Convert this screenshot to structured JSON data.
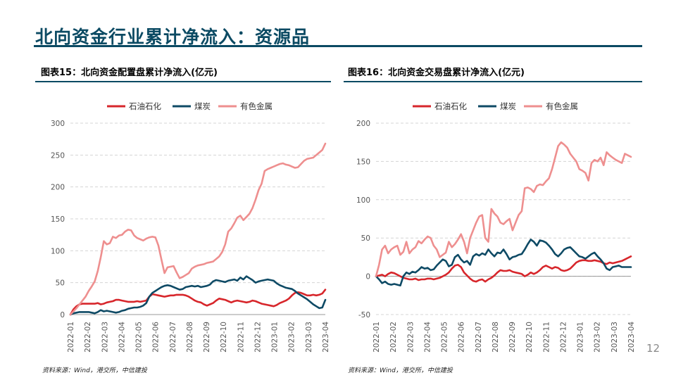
{
  "slide": {
    "title": "北向资金行业累计净流入：资源品",
    "page_number": "12",
    "accent_color": "#0b4a63"
  },
  "chart_data": [
    {
      "type": "line",
      "title": "图表15：北向资金配置盘累计净流入(亿元)",
      "source": "资料来源：Wind，港交所，中信建投",
      "xlabel": "",
      "ylabel": "",
      "ylim": [
        0,
        300
      ],
      "yticks": [
        "0",
        "50",
        "100",
        "150",
        "200",
        "250",
        "300"
      ],
      "xticks": [
        "2022-01",
        "2022-02",
        "2022-03",
        "2022-04",
        "2022-05",
        "2022-06",
        "2022-07",
        "2022-08",
        "2022-09",
        "2022-10",
        "2022-11",
        "2022-12",
        "2023-01",
        "2023-02",
        "2023-03",
        "2023-04"
      ],
      "grid": "horizontal",
      "legend_position": "top",
      "series": [
        {
          "name": "石油石化",
          "color": "#d7262b",
          "values": [
            0,
            8,
            13,
            16,
            17,
            17,
            17,
            17,
            17,
            18,
            16,
            17,
            19,
            20,
            21,
            23,
            23,
            22,
            21,
            20,
            20,
            20,
            21,
            20,
            21,
            22,
            28,
            32,
            31,
            30,
            29,
            28,
            29,
            30,
            30,
            31,
            31,
            31,
            30,
            28,
            25,
            22,
            20,
            19,
            16,
            14,
            16,
            18,
            22,
            25,
            24,
            23,
            21,
            19,
            21,
            22,
            21,
            20,
            19,
            20,
            22,
            21,
            19,
            17,
            16,
            15,
            14,
            13,
            15,
            18,
            20,
            22,
            25,
            30,
            34,
            35,
            34,
            32,
            30,
            30,
            31,
            30,
            31,
            33,
            39
          ]
        },
        {
          "name": "煤炭",
          "color": "#0e4a65",
          "values": [
            0,
            2,
            3,
            4,
            4,
            4,
            4,
            3,
            2,
            4,
            7,
            5,
            6,
            5,
            4,
            3,
            4,
            6,
            7,
            9,
            10,
            11,
            11,
            12,
            14,
            18,
            28,
            34,
            37,
            40,
            43,
            45,
            46,
            45,
            43,
            41,
            39,
            40,
            43,
            44,
            45,
            44,
            45,
            43,
            44,
            45,
            47,
            52,
            54,
            53,
            52,
            51,
            53,
            54,
            55,
            53,
            58,
            55,
            60,
            57,
            54,
            50,
            52,
            53,
            54,
            55,
            54,
            53,
            49,
            46,
            44,
            42,
            41,
            40,
            37,
            33,
            30,
            27,
            24,
            20,
            16,
            13,
            10,
            11,
            23
          ]
        },
        {
          "name": "有色金属",
          "color": "#ee8f8f",
          "values": [
            0,
            5,
            10,
            16,
            22,
            28,
            37,
            44,
            52,
            68,
            90,
            115,
            110,
            112,
            122,
            120,
            124,
            125,
            130,
            133,
            132,
            124,
            120,
            118,
            116,
            119,
            121,
            122,
            121,
            108,
            86,
            65,
            74,
            75,
            76,
            66,
            57,
            59,
            62,
            65,
            72,
            75,
            77,
            78,
            79,
            81,
            82,
            83,
            87,
            91,
            98,
            110,
            130,
            135,
            143,
            152,
            155,
            148,
            153,
            158,
            167,
            180,
            195,
            205,
            225,
            228,
            230,
            232,
            234,
            236,
            237,
            235,
            234,
            232,
            230,
            231,
            236,
            241,
            244,
            245,
            246,
            250,
            254,
            258,
            268
          ]
        }
      ]
    },
    {
      "type": "line",
      "title": "图表16：北向资金交易盘累计净流入(亿元)",
      "source": "资料来源：Wind，港交所，中信建投",
      "xlabel": "",
      "ylabel": "",
      "ylim": [
        -50,
        200
      ],
      "yticks": [
        "-50",
        "0",
        "50",
        "100",
        "150",
        "200"
      ],
      "xticks": [
        "2022-01",
        "2022-02",
        "2022-03",
        "2022-04",
        "2022-05",
        "2022-06",
        "2022-07",
        "2022-08",
        "2022-09",
        "2022-10",
        "2022-11",
        "2022-12",
        "2023-01",
        "2023-02",
        "2023-03",
        "2023-04"
      ],
      "grid": "horizontal",
      "legend_position": "top",
      "series": [
        {
          "name": "石油石化",
          "color": "#d7262b",
          "values": [
            0,
            1,
            2,
            0,
            3,
            5,
            4,
            2,
            0,
            -2,
            -3,
            -4,
            -4,
            -3,
            -5,
            -4,
            -4,
            -3,
            -3,
            -4,
            -3,
            -2,
            0,
            2,
            5,
            10,
            14,
            15,
            12,
            5,
            1,
            -3,
            -6,
            -7,
            -5,
            -4,
            -7,
            -4,
            -2,
            1,
            5,
            8,
            7,
            7,
            8,
            6,
            5,
            4,
            3,
            0,
            2,
            5,
            3,
            5,
            8,
            12,
            14,
            12,
            10,
            12,
            11,
            8,
            7,
            8,
            10,
            14,
            18,
            20,
            21,
            21,
            20,
            20,
            21,
            20,
            19,
            17,
            16,
            18,
            17,
            18,
            19,
            20,
            22,
            24,
            26
          ]
        },
        {
          "name": "煤炭",
          "color": "#0e4a65",
          "values": [
            0,
            -4,
            -9,
            -7,
            -10,
            -11,
            -10,
            -11,
            -12,
            0,
            5,
            3,
            6,
            5,
            8,
            12,
            10,
            11,
            8,
            9,
            14,
            18,
            22,
            20,
            13,
            15,
            25,
            28,
            22,
            18,
            20,
            15,
            26,
            29,
            27,
            30,
            28,
            35,
            30,
            26,
            31,
            30,
            35,
            29,
            22,
            25,
            26,
            28,
            29,
            35,
            42,
            48,
            45,
            40,
            47,
            46,
            44,
            40,
            35,
            29,
            26,
            30,
            35,
            37,
            38,
            34,
            30,
            26,
            25,
            23,
            26,
            29,
            31,
            26,
            22,
            17,
            10,
            8,
            12,
            13,
            14,
            12,
            12,
            12,
            12
          ]
        },
        {
          "name": "有色金属",
          "color": "#ee8f8f",
          "values": [
            0,
            15,
            35,
            40,
            30,
            35,
            38,
            40,
            28,
            32,
            45,
            30,
            35,
            38,
            46,
            43,
            48,
            52,
            50,
            40,
            35,
            25,
            28,
            31,
            45,
            38,
            42,
            48,
            55,
            45,
            30,
            50,
            60,
            70,
            78,
            80,
            50,
            45,
            88,
            82,
            78,
            70,
            68,
            72,
            75,
            60,
            70,
            80,
            85,
            115,
            116,
            114,
            110,
            118,
            120,
            119,
            124,
            128,
            140,
            155,
            170,
            175,
            172,
            168,
            160,
            155,
            150,
            140,
            138,
            135,
            125,
            148,
            152,
            150,
            155,
            145,
            162,
            158,
            155,
            152,
            150,
            148,
            160,
            158,
            156
          ]
        }
      ]
    }
  ]
}
